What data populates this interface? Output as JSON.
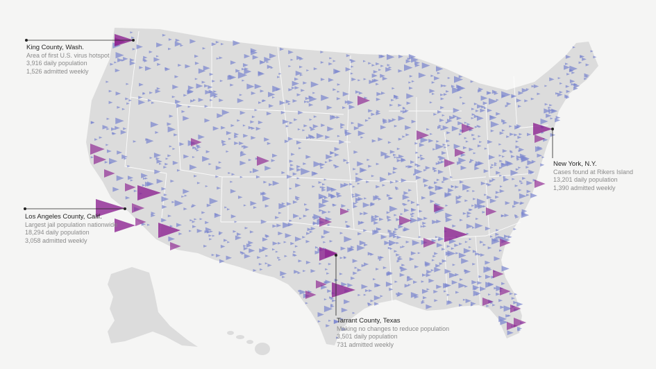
{
  "annotations": [
    {
      "title": "King County, Wash.",
      "lines": [
        "Area of first U.S. virus hotspot",
        "3,916 daily population",
        "1,526 admitted weekly"
      ]
    },
    {
      "title": "Los Angeles County, Calif.",
      "lines": [
        "Largest jail population nationwide",
        "18,294 daily population",
        "3,058 admitted weekly"
      ]
    },
    {
      "title": "New York, N.Y.",
      "lines": [
        "Cases found at Rikers Island",
        "13,201 daily population",
        "1,390 admitted weekly"
      ]
    },
    {
      "title": "Tarrant County, Texas",
      "lines": [
        "Making no changes to reduce population",
        "3,501 daily population",
        "731 admitted weekly"
      ]
    }
  ],
  "colors": {
    "land": "#dcdcdc",
    "state_border": "#ffffff",
    "background": "#f5f5f4",
    "small_marker": "#7b86cf",
    "large_marker": "#8a1f8f",
    "leader_line": "#222222"
  }
}
